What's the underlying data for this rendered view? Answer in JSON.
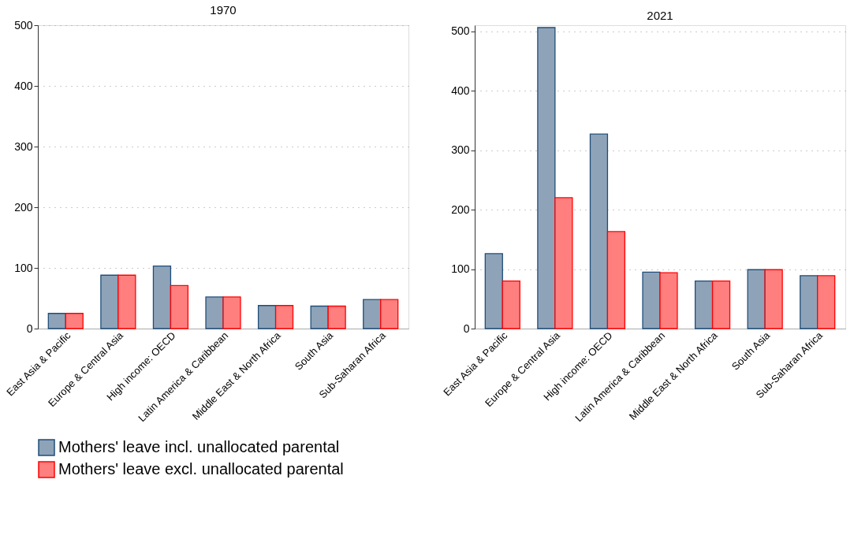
{
  "chart_data": [
    {
      "type": "bar",
      "title": "1970",
      "categories": [
        "East Asia & Pacific",
        "Europe & Central Asia",
        "High income: OECD",
        "Latin America & Caribbean",
        "Middle East & North Africa",
        "South Asia",
        "Sub-Saharan Africa"
      ],
      "series": [
        {
          "name": "Mothers' leave incl. unallocated parental",
          "color": "#8ea3b8",
          "values": [
            25,
            88,
            103,
            52,
            38,
            37,
            48
          ]
        },
        {
          "name": "Mothers' leave excl. unallocated parental",
          "color": "#ff7f7f",
          "values": [
            25,
            88,
            71,
            52,
            38,
            37,
            48
          ]
        }
      ],
      "ylim": [
        0,
        500
      ],
      "yticks": [
        0,
        100,
        200,
        300,
        400,
        500
      ],
      "grid": "y",
      "legend": "bottom"
    },
    {
      "type": "bar",
      "title": "2021",
      "categories": [
        "East Asia & Pacific",
        "Europe & Central Asia",
        "High income: OECD",
        "Latin America & Caribbean",
        "Middle East & North Africa",
        "South Asia",
        "Sub-Saharan Africa"
      ],
      "series": [
        {
          "name": "Mothers' leave incl. unallocated parental",
          "color": "#8ea3b8",
          "values": [
            126,
            506,
            327,
            95,
            80,
            99,
            89
          ]
        },
        {
          "name": "Mothers' leave excl. unallocated parental",
          "color": "#ff7f7f",
          "values": [
            80,
            220,
            163,
            94,
            80,
            99,
            89
          ]
        }
      ],
      "ylim": [
        0,
        510
      ],
      "yticks": [
        0,
        100,
        200,
        300,
        400,
        500
      ],
      "grid": "y",
      "legend": "bottom"
    }
  ]
}
